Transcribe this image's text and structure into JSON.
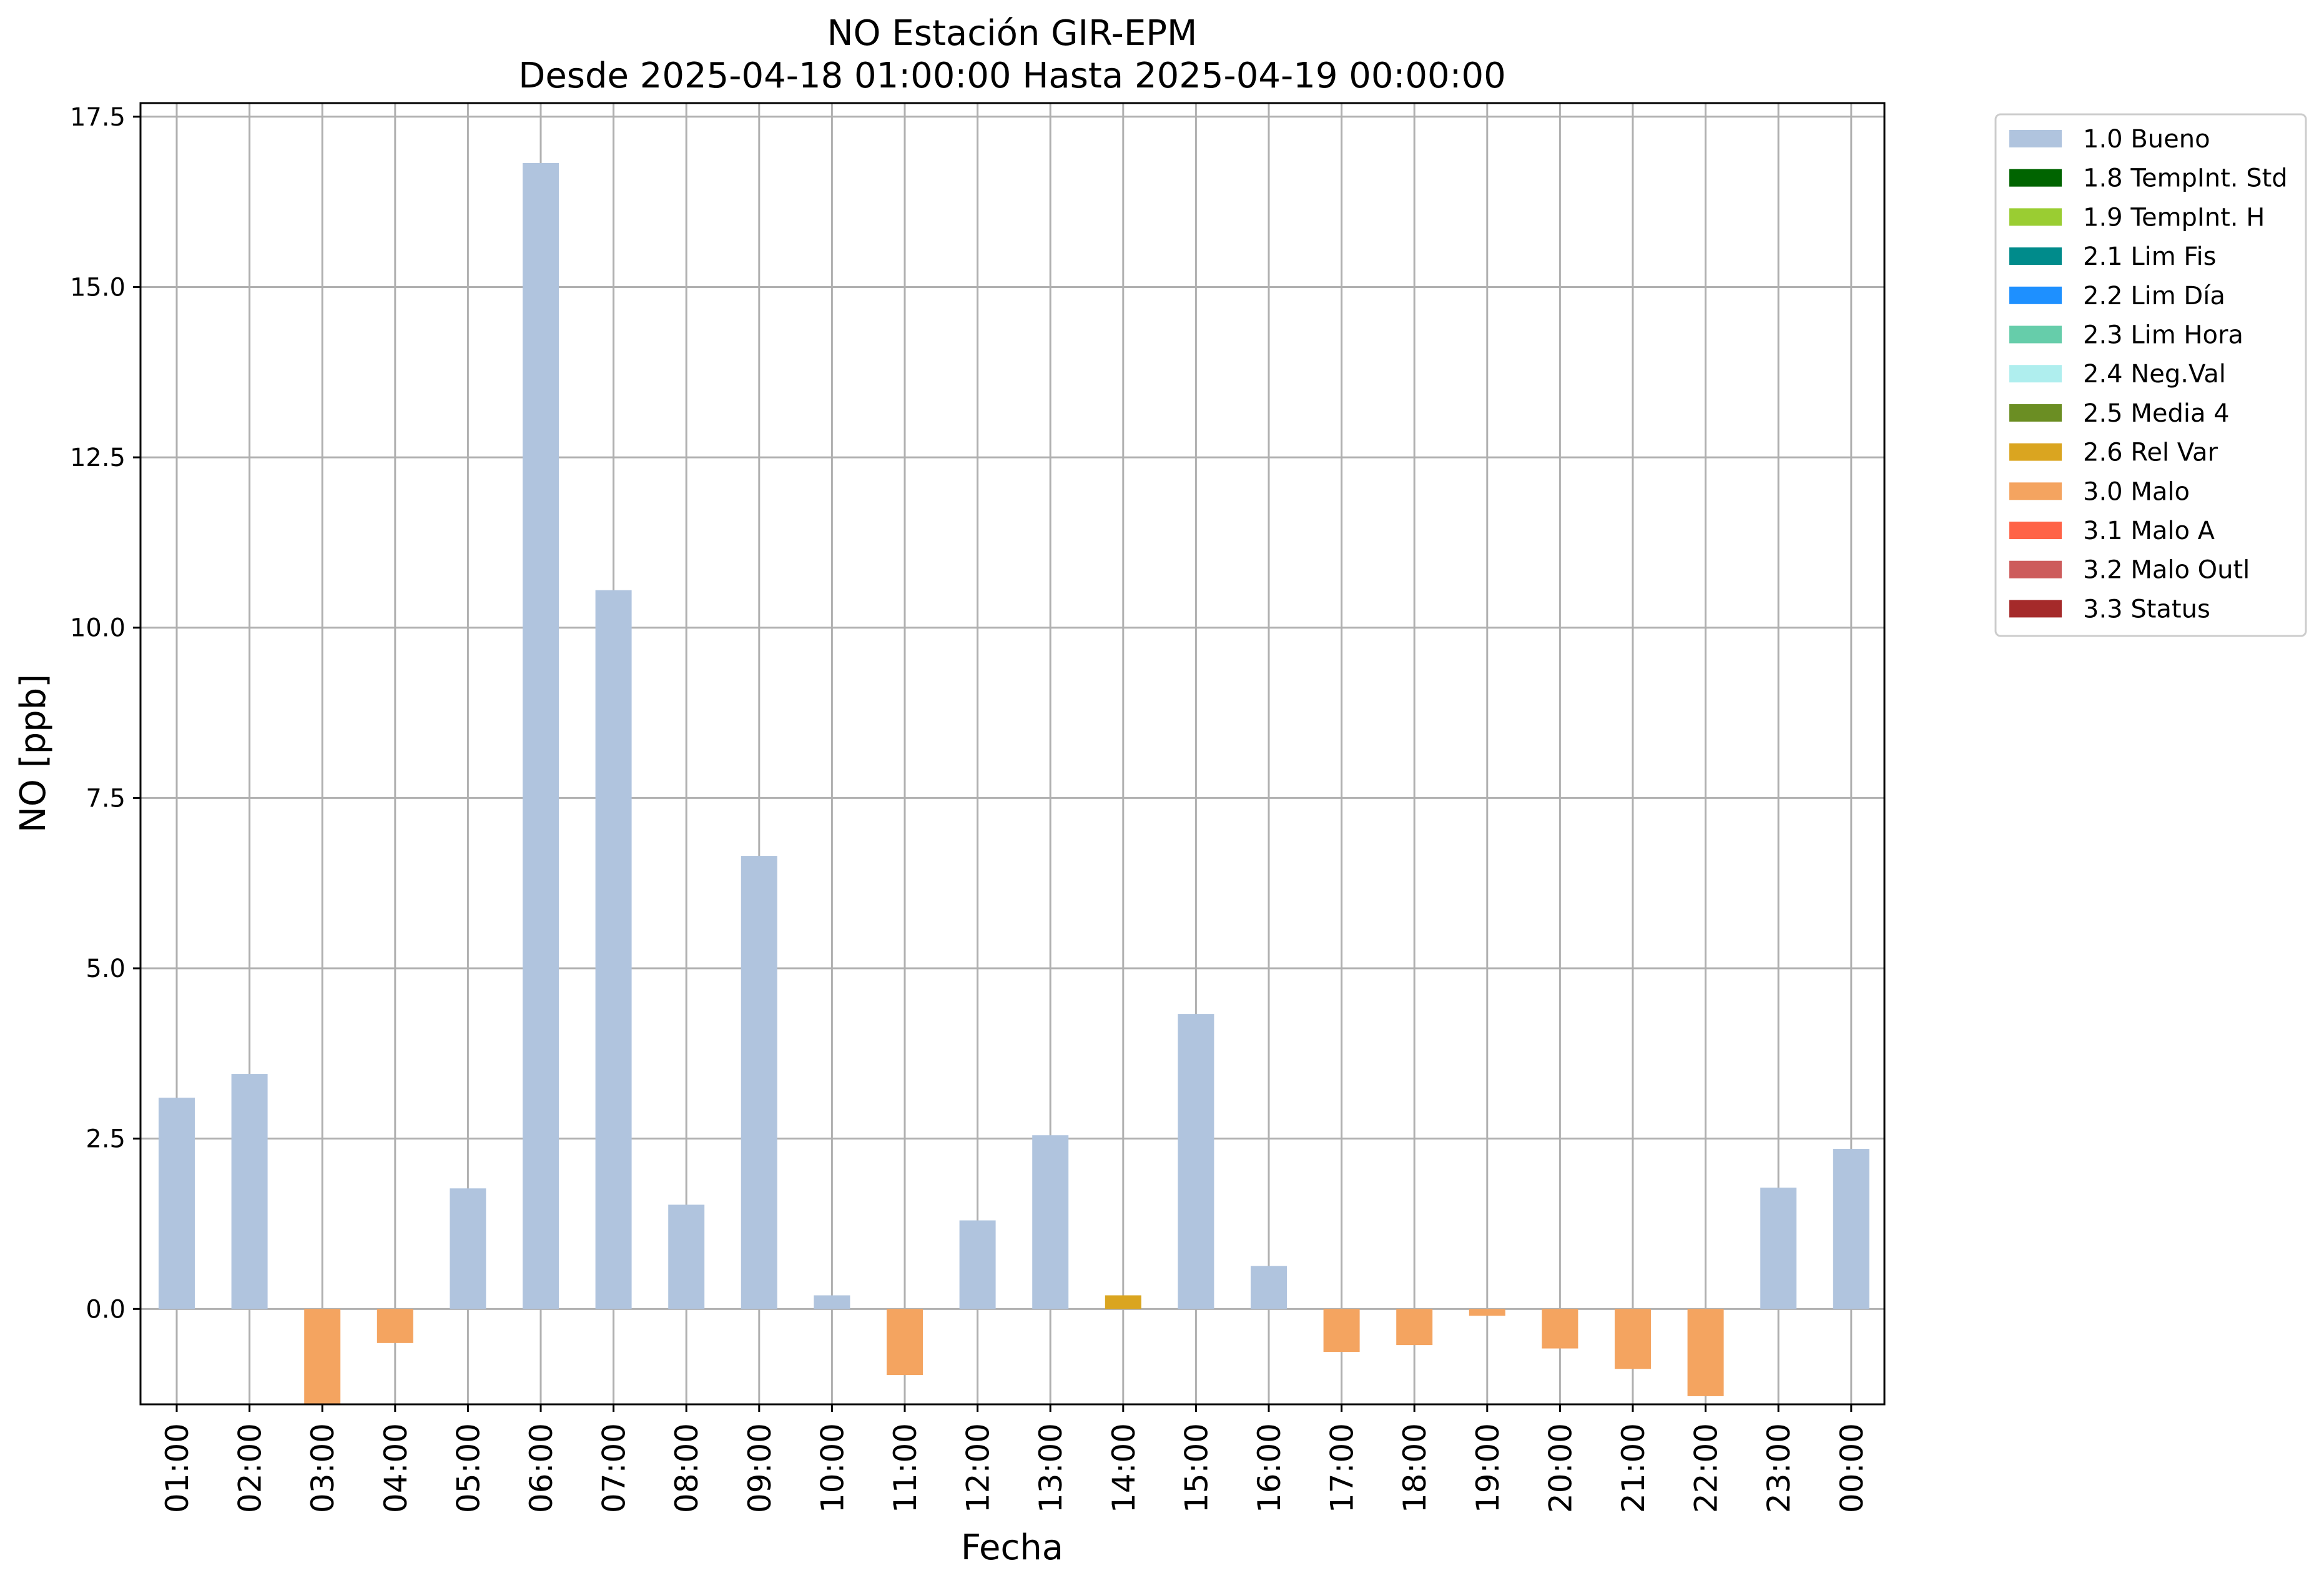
{
  "chart_data": {
    "type": "bar",
    "title": "NO Estación GIR-EPM",
    "subtitle": "Desde 2025-04-18 01:00:00 Hasta 2025-04-19 00:00:00",
    "xlabel": "Fecha",
    "ylabel": "NO [ppb]",
    "ylim": [
      -1.4,
      17.7
    ],
    "yticks": [
      "0.0",
      "2.5",
      "5.0",
      "7.5",
      "10.0",
      "12.5",
      "15.0",
      "17.5"
    ],
    "grid": true,
    "legend_position": "outside-top-right",
    "categories": [
      "01:00",
      "02:00",
      "03:00",
      "04:00",
      "05:00",
      "06:00",
      "07:00",
      "08:00",
      "09:00",
      "10:00",
      "11:00",
      "12:00",
      "13:00",
      "14:00",
      "15:00",
      "16:00",
      "17:00",
      "18:00",
      "19:00",
      "20:00",
      "21:00",
      "22:00",
      "23:00",
      "00:00"
    ],
    "values": [
      3.1,
      3.45,
      -1.4,
      -0.5,
      1.77,
      16.82,
      10.55,
      1.53,
      6.65,
      0.2,
      -0.97,
      1.3,
      2.55,
      0.2,
      4.33,
      0.63,
      -0.63,
      -0.53,
      -0.1,
      -0.58,
      -0.88,
      -1.28,
      1.78,
      2.35
    ],
    "flags": [
      "1.0 Bueno",
      "1.0 Bueno",
      "3.0 Malo",
      "3.0 Malo",
      "1.0 Bueno",
      "1.0 Bueno",
      "1.0 Bueno",
      "1.0 Bueno",
      "1.0 Bueno",
      "1.0 Bueno",
      "3.0 Malo",
      "1.0 Bueno",
      "1.0 Bueno",
      "2.6 Rel Var",
      "1.0 Bueno",
      "1.0 Bueno",
      "3.0 Malo",
      "3.0 Malo",
      "3.0 Malo",
      "3.0 Malo",
      "3.0 Malo",
      "3.0 Malo",
      "1.0 Bueno",
      "1.0 Bueno"
    ],
    "legend": [
      {
        "label": "1.0 Bueno",
        "color": "#b0c4de"
      },
      {
        "label": "1.8 TempInt. Std",
        "color": "#006400"
      },
      {
        "label": "1.9 TempInt. H",
        "color": "#9acd32"
      },
      {
        "label": "2.1 Lim Fis",
        "color": "#008b8b"
      },
      {
        "label": "2.2 Lim Día",
        "color": "#1e90ff"
      },
      {
        "label": "2.3 Lim Hora",
        "color": "#66cdaa"
      },
      {
        "label": "2.4 Neg.Val",
        "color": "#afeeee"
      },
      {
        "label": "2.5 Media 4",
        "color": "#6b8e23"
      },
      {
        "label": "2.6 Rel Var",
        "color": "#daa520"
      },
      {
        "label": "3.0 Malo",
        "color": "#f4a460"
      },
      {
        "label": "3.1 Malo A",
        "color": "#ff6347"
      },
      {
        "label": "3.2 Malo Outl",
        "color": "#cd5c5c"
      },
      {
        "label": "3.3 Status",
        "color": "#a52a2a"
      }
    ]
  }
}
